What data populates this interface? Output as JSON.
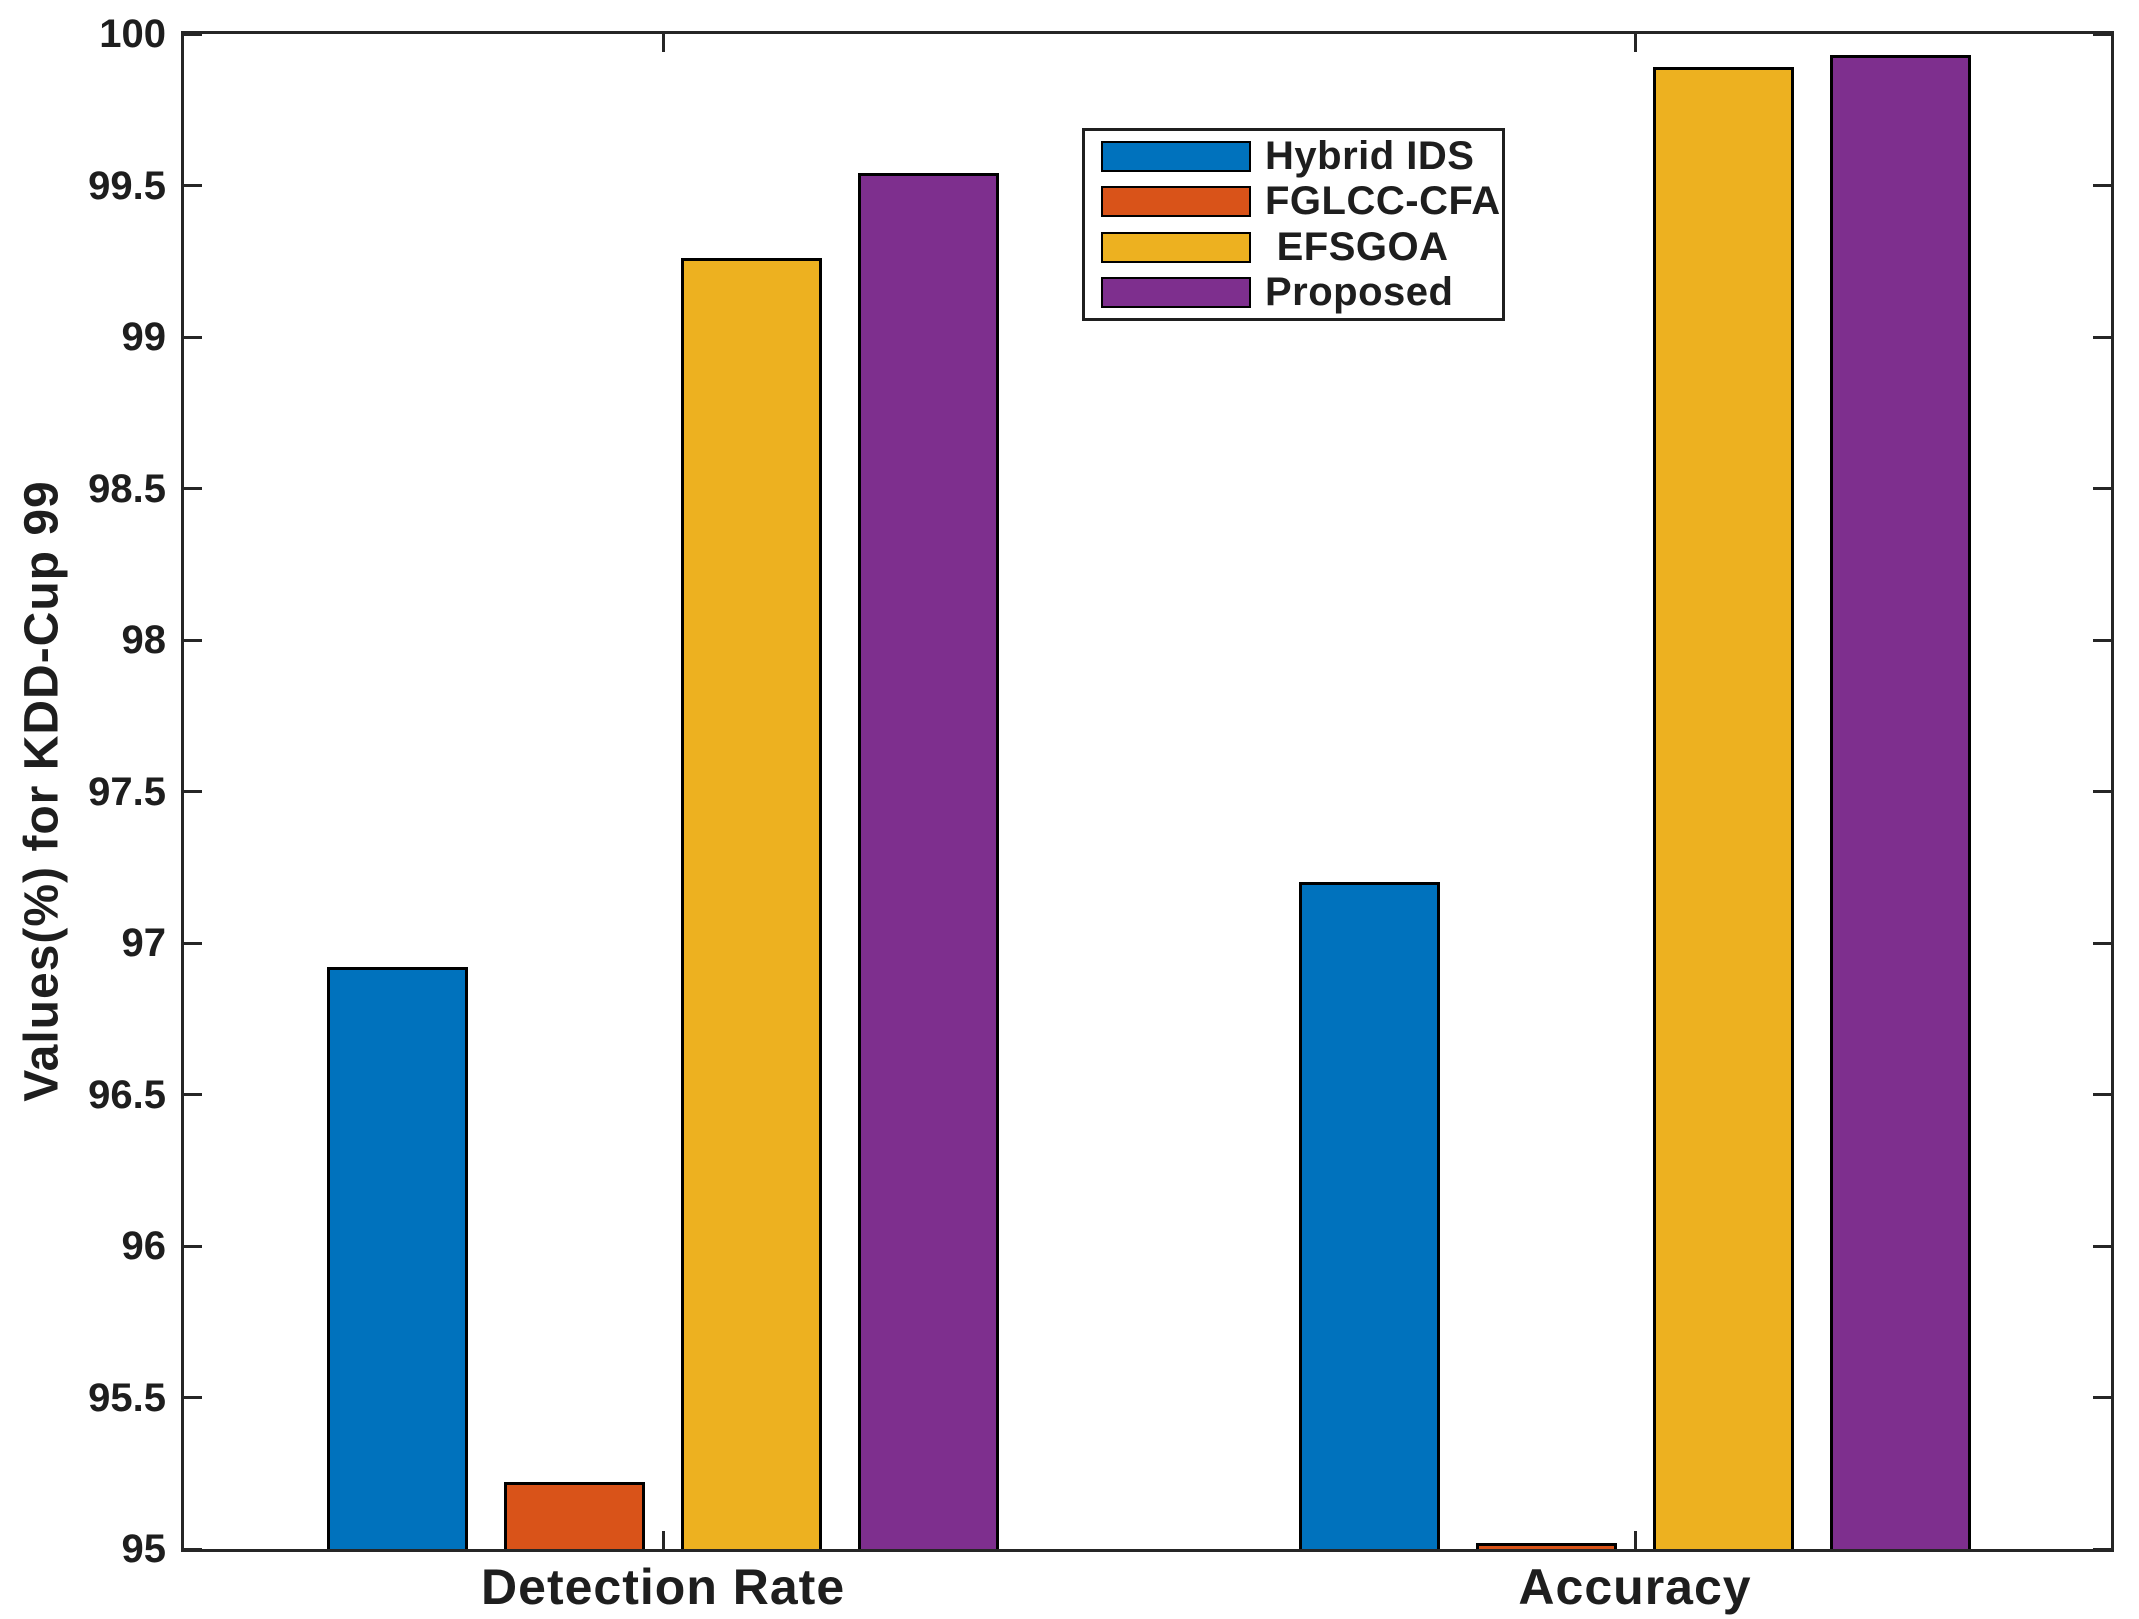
{
  "figure": {
    "background": "#ffffff",
    "axis_color": "#262626",
    "text_color": "#1e1e1e",
    "bar_edge_color": "#000000"
  },
  "chart_data": {
    "type": "bar",
    "title": "",
    "xlabel": "",
    "ylabel": "Values(%) for KDD-Cup 99",
    "categories": [
      "Detection Rate",
      "Accuracy"
    ],
    "series": [
      {
        "name": "Hybrid IDS",
        "color": "#0072BD",
        "values": [
          96.92,
          97.2
        ]
      },
      {
        "name": "FGLCC-CFA",
        "color": "#D95319",
        "values": [
          95.22,
          95.02
        ]
      },
      {
        "name": " EFSGOA",
        "color": "#EDB120",
        "values": [
          99.26,
          99.89
        ]
      },
      {
        "name": "Proposed",
        "color": "#7E2F8E",
        "values": [
          99.54,
          99.93
        ]
      }
    ],
    "ylim": [
      95,
      100
    ],
    "ytick_step": 0.5,
    "ytick_labels": [
      "100",
      "99.5",
      "99",
      "98.5",
      "98",
      "97.5",
      "97",
      "96.5",
      "96",
      "95.5",
      "95"
    ],
    "grid": false,
    "legend_position": "inside upper center-left",
    "box": true,
    "tick_direction": "in"
  }
}
